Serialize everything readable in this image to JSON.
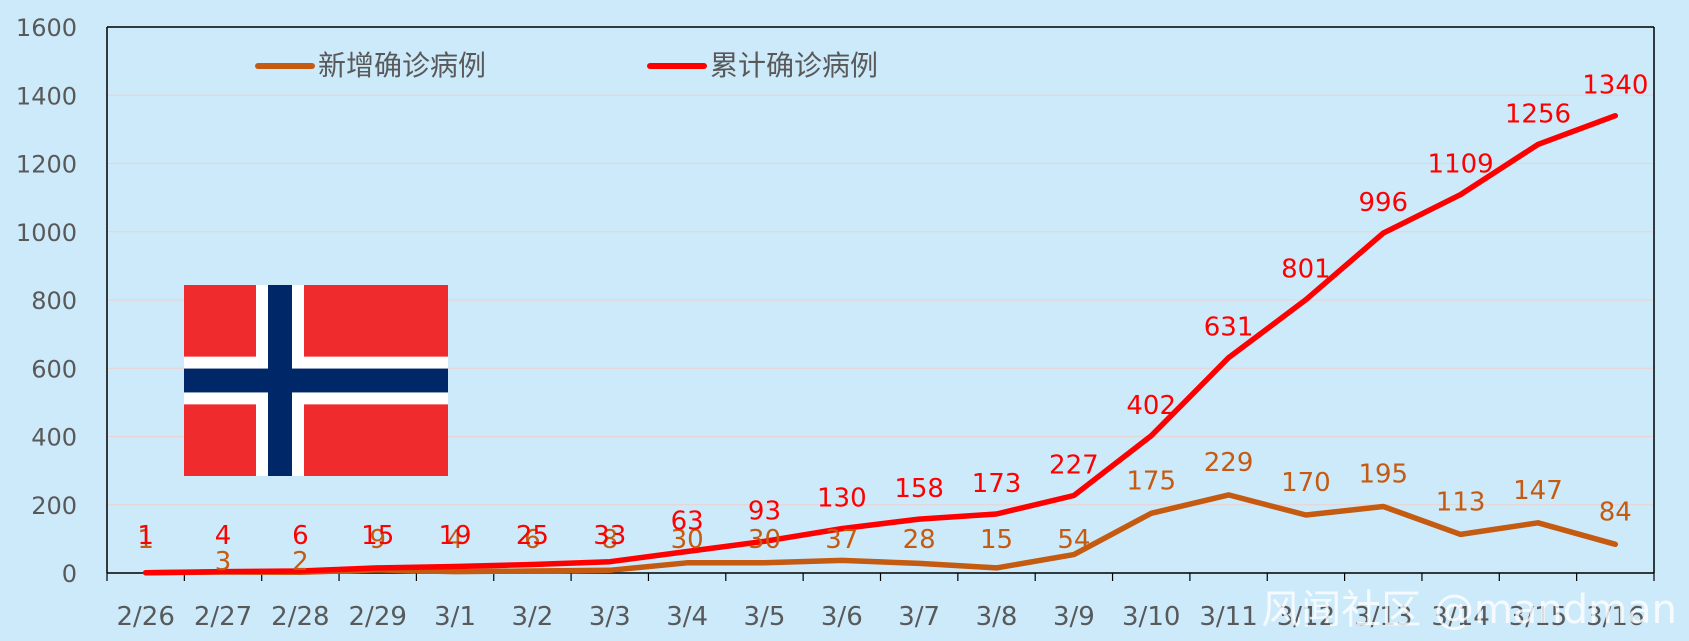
{
  "chart_data": {
    "type": "line",
    "categories": [
      "2/26",
      "2/27",
      "2/28",
      "2/29",
      "3/1",
      "3/2",
      "3/3",
      "3/4",
      "3/5",
      "3/6",
      "3/7",
      "3/8",
      "3/9",
      "3/10",
      "3/11",
      "3/12",
      "3/13",
      "3/14",
      "3/15",
      "3/16"
    ],
    "series": [
      {
        "name": "新增确诊病例",
        "color": "#c55a11",
        "values": [
          1,
          3,
          2,
          9,
          4,
          6,
          8,
          30,
          30,
          37,
          28,
          15,
          54,
          175,
          229,
          170,
          195,
          113,
          147,
          84
        ]
      },
      {
        "name": "累计确诊病例",
        "color": "#ff0000",
        "values": [
          1,
          4,
          6,
          15,
          19,
          25,
          33,
          63,
          93,
          130,
          158,
          173,
          227,
          402,
          631,
          801,
          996,
          1109,
          1256,
          1340
        ]
      }
    ],
    "ylim": [
      0,
      1600
    ],
    "yticks": [
      0,
      200,
      400,
      600,
      800,
      1000,
      1200,
      1400,
      1600
    ],
    "grid": true,
    "legend": "top-left",
    "watermark": "风闻社区 @mandman"
  },
  "colors": {
    "background": "#cdeafb",
    "flag_red": "#ef2b2d",
    "flag_blue": "#002868",
    "flag_white": "#ffffff"
  },
  "image": {
    "flag_icon": "norway-flag"
  }
}
